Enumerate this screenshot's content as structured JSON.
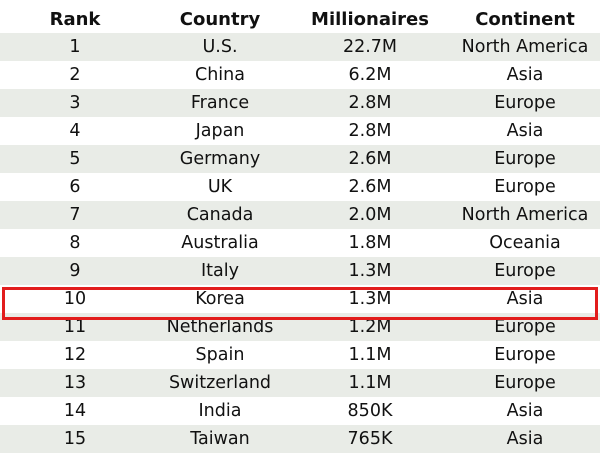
{
  "table": {
    "headers": [
      "Rank",
      "Country",
      "Millionaires",
      "Continent"
    ],
    "rows": [
      [
        "1",
        "U.S.",
        "22.7M",
        "North America"
      ],
      [
        "2",
        "China",
        "6.2M",
        "Asia"
      ],
      [
        "3",
        "France",
        "2.8M",
        "Europe"
      ],
      [
        "4",
        "Japan",
        "2.8M",
        "Asia"
      ],
      [
        "5",
        "Germany",
        "2.6M",
        "Europe"
      ],
      [
        "6",
        "UK",
        "2.6M",
        "Europe"
      ],
      [
        "7",
        "Canada",
        "2.0M",
        "North America"
      ],
      [
        "8",
        "Australia",
        "1.8M",
        "Oceania"
      ],
      [
        "9",
        "Italy",
        "1.3M",
        "Europe"
      ],
      [
        "10",
        "Korea",
        "1.3M",
        "Asia"
      ],
      [
        "11",
        "Netherlands",
        "1.2M",
        "Europe"
      ],
      [
        "12",
        "Spain",
        "1.1M",
        "Europe"
      ],
      [
        "13",
        "Switzerland",
        "1.1M",
        "Europe"
      ],
      [
        "14",
        "India",
        "850K",
        "Asia"
      ],
      [
        "15",
        "Taiwan",
        "765K",
        "Asia"
      ]
    ],
    "highlighted_rank": "10"
  },
  "colors": {
    "stripe": "#e9ece7",
    "highlight_border": "#e21d1d",
    "text": "#111111"
  }
}
